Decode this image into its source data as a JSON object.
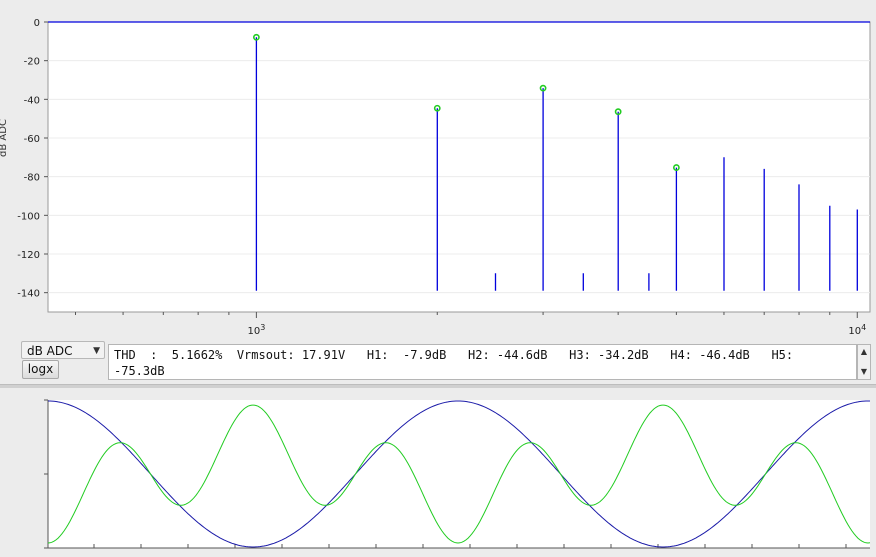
{
  "spectrum": {
    "y_ticks": [
      "0",
      "-20",
      "-40",
      "-60",
      "-80",
      "-100",
      "-120",
      "-140"
    ],
    "y_label_fragment": "dB ADC",
    "x_ticks": [
      {
        "base": "10",
        "exp": "3"
      },
      {
        "base": "10",
        "exp": "4"
      }
    ],
    "colors": {
      "trace": "#0000dd",
      "marker": "#22cc22",
      "grid": "#d8d8d8"
    }
  },
  "chart_data": {
    "type": "line",
    "x_scale": "log",
    "xlim": [
      450,
      10500
    ],
    "ylim": [
      -150,
      0
    ],
    "ylabel": "dB ADC",
    "noise_floor_db": -139,
    "peaks": [
      {
        "freq": 1000,
        "db": -7.9,
        "marker": true
      },
      {
        "freq": 2000,
        "db": -44.6,
        "marker": true
      },
      {
        "freq": 3000,
        "db": -34.2,
        "marker": true
      },
      {
        "freq": 4000,
        "db": -46.4,
        "marker": true
      },
      {
        "freq": 5000,
        "db": -75.3,
        "marker": true
      },
      {
        "freq": 6000,
        "db": -70,
        "marker": false
      },
      {
        "freq": 7000,
        "db": -76,
        "marker": false
      },
      {
        "freq": 8000,
        "db": -84,
        "marker": false
      },
      {
        "freq": 9000,
        "db": -95,
        "marker": false
      },
      {
        "freq": 10000,
        "db": -97,
        "marker": false
      },
      {
        "freq": 2500,
        "db": -130,
        "marker": false
      },
      {
        "freq": 3500,
        "db": -130,
        "marker": false
      },
      {
        "freq": 4500,
        "db": -130,
        "marker": false
      }
    ]
  },
  "controls": {
    "scale_select": "dB ADC",
    "logx_label": "logx",
    "info_text": "THD  :  5.1662%  Vrmsout: 17.91V   H1:  -7.9dB   H2: -44.6dB   H3: -34.2dB   H4: -46.4dB   H5:\n-75.3dB"
  },
  "waveform": {
    "colors": {
      "blue": "#1a1aa8",
      "green": "#22cc22"
    }
  }
}
